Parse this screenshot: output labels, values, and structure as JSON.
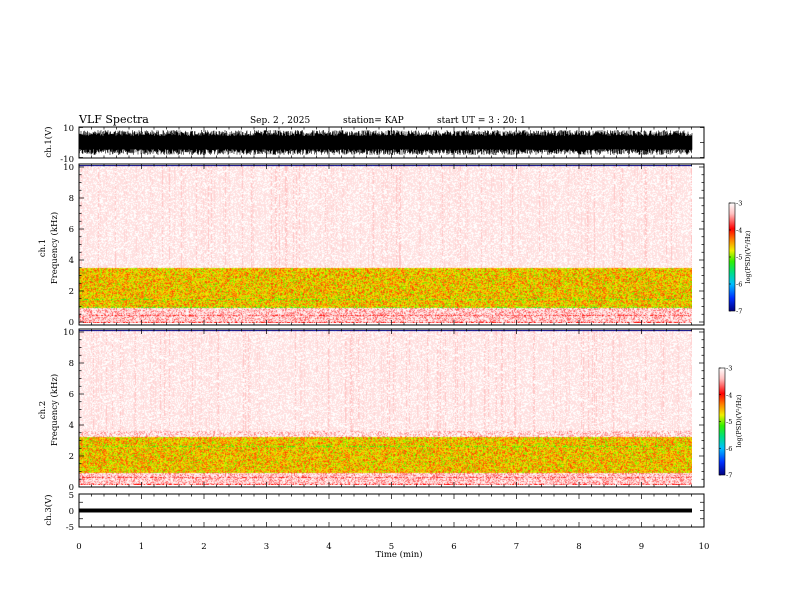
{
  "header": {
    "title": "VLF Spectra",
    "date": "Sep. 2 , 2025",
    "station": "station= KAP",
    "start": "start  UT =  3 : 20: 1"
  },
  "chart_data": [
    {
      "id": "ch1-waveform",
      "type": "line",
      "ylabel": "ch.1(V)",
      "ylim": [
        -10,
        10
      ],
      "y_tick_labels": [
        "10",
        "-10"
      ],
      "description_note": "dense noise waveform spanning nearly full range"
    },
    {
      "id": "ch1-spectrogram",
      "type": "heatmap",
      "ylabel": "ch.1\nFrequency (kHz)",
      "ylabel_lines": [
        "ch.1",
        "Frequency  (kHz)"
      ],
      "ylim": [
        0,
        10
      ],
      "y_tick_labels": [
        "0",
        "2",
        "4",
        "6",
        "8",
        "10"
      ],
      "xlim": [
        0,
        9.8
      ],
      "colorbar": {
        "label": "log(PSD)(V²/Hz)",
        "range": [
          -7,
          -3
        ],
        "tick_labels": [
          "-3",
          "-4",
          "-5",
          "-6",
          "-7"
        ]
      },
      "bands_khz": [
        {
          "from": 0.1,
          "to": 1.0,
          "level": -3.3
        },
        {
          "from": 1.0,
          "to": 3.5,
          "level": -4.6
        },
        {
          "from": 3.5,
          "to": 10,
          "level": -3.2
        }
      ]
    },
    {
      "id": "ch2-spectrogram",
      "type": "heatmap",
      "ylabel": "ch.2\nFrequency (kHz)",
      "ylabel_lines": [
        "ch.2",
        "Frequency  (kHz)"
      ],
      "ylim": [
        0,
        10
      ],
      "y_tick_labels": [
        "0",
        "2",
        "4",
        "6",
        "8",
        "10"
      ],
      "xlim": [
        0,
        9.8
      ],
      "colorbar": {
        "label": "log(PSD)(V²/Hz)",
        "range": [
          -7,
          -3
        ],
        "tick_labels": [
          "-3",
          "-4",
          "-5",
          "-6",
          "-7"
        ]
      },
      "bands_khz": [
        {
          "from": 0.1,
          "to": 0.8,
          "level": -3.3
        },
        {
          "from": 0.8,
          "to": 3.1,
          "level": -4.6
        },
        {
          "from": 3.1,
          "to": 10,
          "level": -3.2
        }
      ]
    },
    {
      "id": "ch3-waveform",
      "type": "line",
      "ylabel": "ch.3(V)",
      "ylim": [
        -5,
        5
      ],
      "y_tick_labels": [
        "5",
        "0",
        "-5"
      ],
      "signal_band": [
        -0.6,
        0.6
      ]
    }
  ],
  "x_axis": {
    "label": "Time  (min)",
    "range": [
      0,
      10
    ],
    "tick_labels": [
      "0",
      "1",
      "2",
      "3",
      "4",
      "5",
      "6",
      "7",
      "8",
      "9",
      "10"
    ]
  },
  "colors": {
    "colormap": [
      "#000090",
      "#0040ff",
      "#00c8ff",
      "#00e080",
      "#40f000",
      "#f0f000",
      "#ff8000",
      "#ff0000",
      "#ffd0d0",
      "#ffffff"
    ]
  }
}
